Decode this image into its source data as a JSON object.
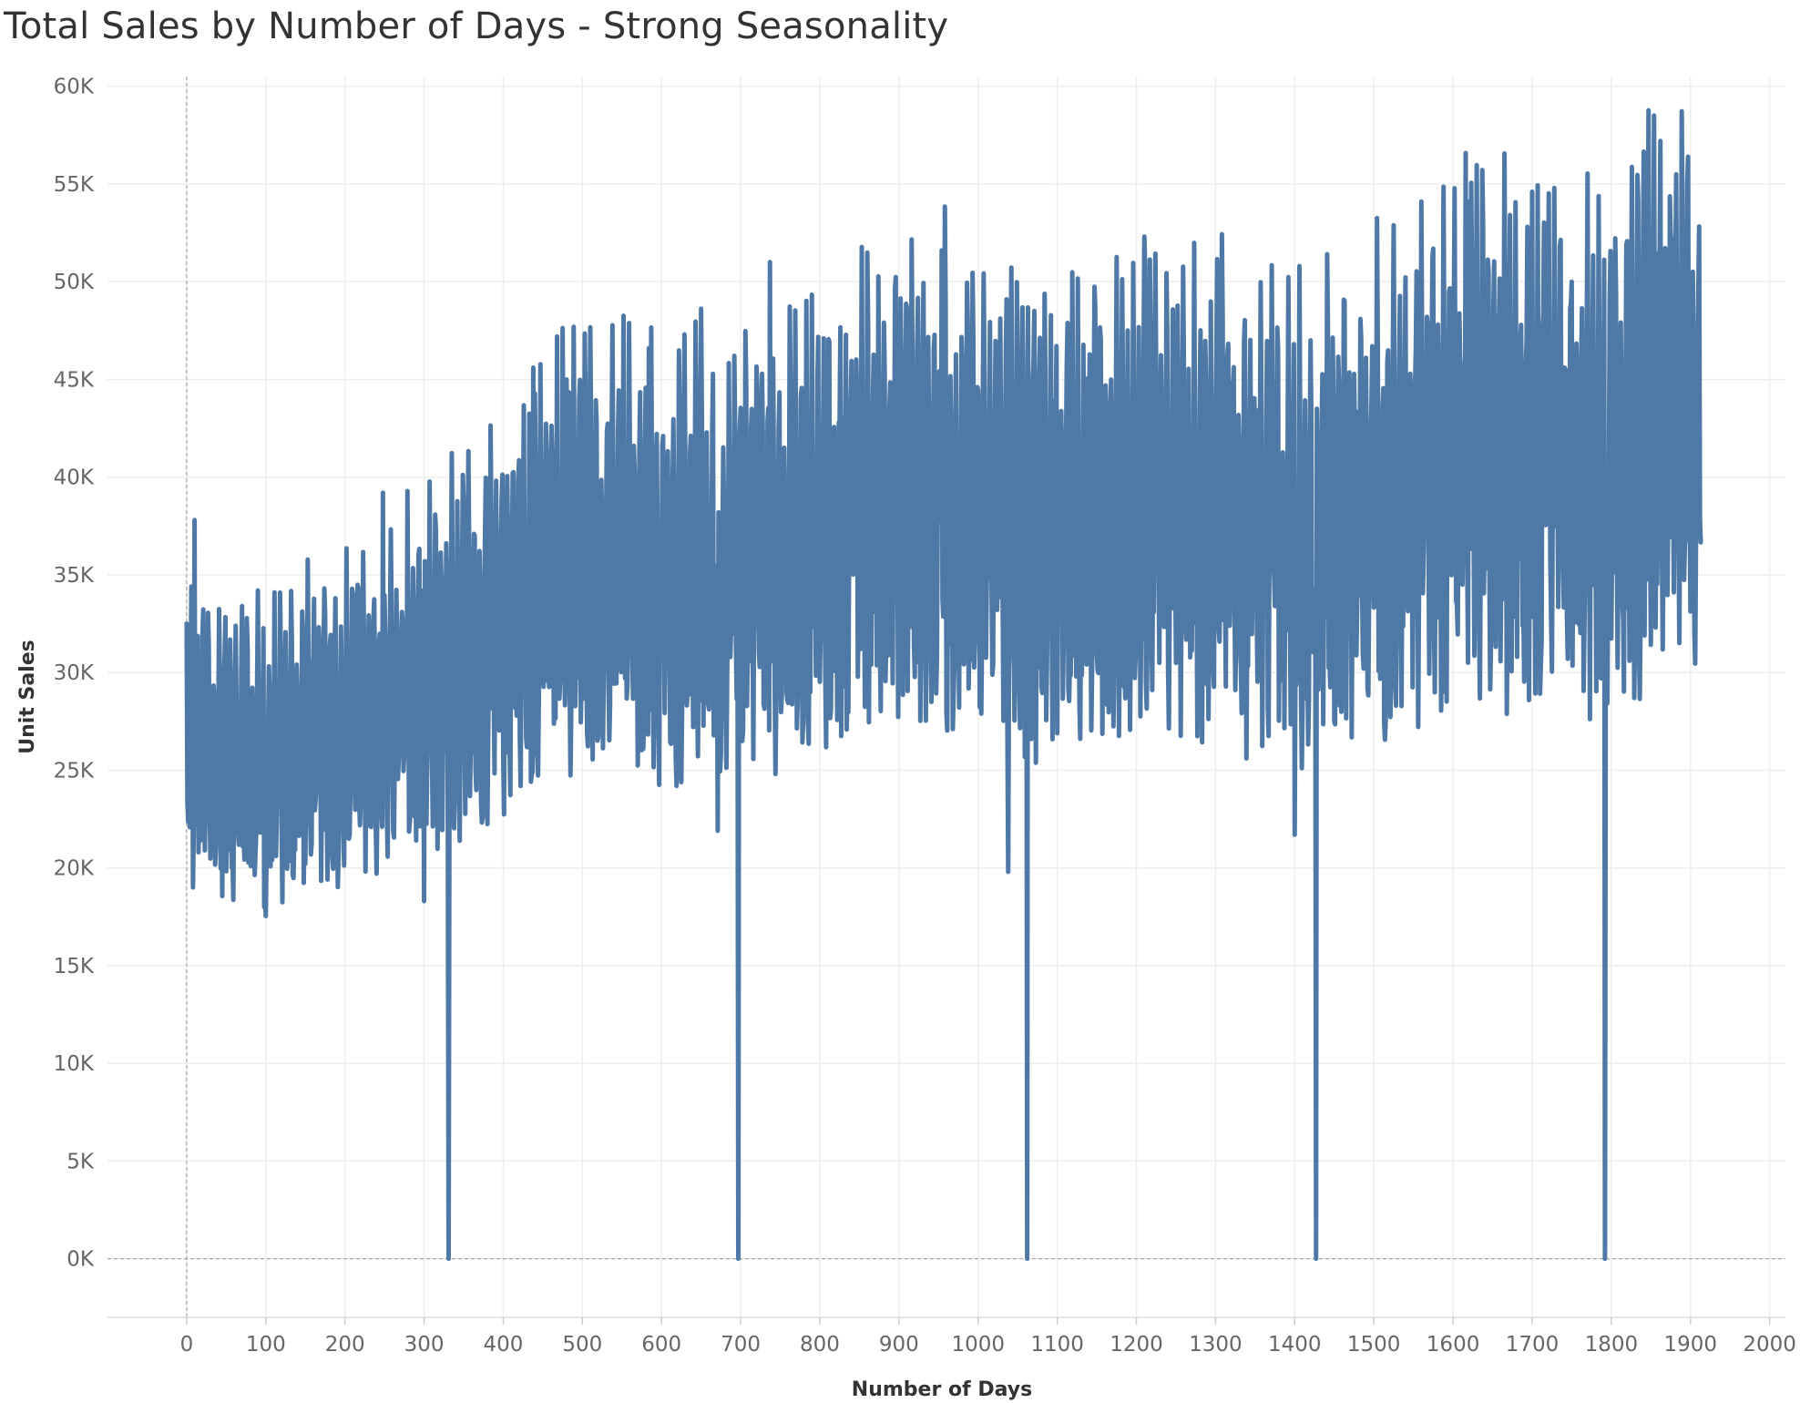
{
  "chart_data": {
    "type": "line",
    "title": "Total Sales by Number of Days - Strong Seasonality",
    "xlabel": "Number of Days",
    "ylabel": "Unit Sales",
    "xlim": [
      -100,
      2020
    ],
    "ylim": [
      -3000,
      60500
    ],
    "x_ticks": [
      0,
      100,
      200,
      300,
      400,
      500,
      600,
      700,
      800,
      900,
      1000,
      1100,
      1200,
      1300,
      1400,
      1500,
      1600,
      1700,
      1800,
      1900,
      2000
    ],
    "x_tick_labels": [
      "0",
      "100",
      "200",
      "300",
      "400",
      "500",
      "600",
      "700",
      "800",
      "900",
      "1000",
      "1100",
      "1200",
      "1300",
      "1400",
      "1500",
      "1600",
      "1700",
      "1800",
      "1900",
      "2000"
    ],
    "y_ticks": [
      0,
      5000,
      10000,
      15000,
      20000,
      25000,
      30000,
      35000,
      40000,
      45000,
      50000,
      55000,
      60000
    ],
    "y_tick_labels": [
      "0K",
      "5K",
      "10K",
      "15K",
      "20K",
      "25K",
      "30K",
      "35K",
      "40K",
      "45K",
      "50K",
      "55K",
      "60K"
    ],
    "grid": true,
    "line_color": "#4e79a7",
    "series": [
      {
        "name": "",
        "x_start": 0,
        "x_end": 1913,
        "trend_anchors": [
          [
            0,
            26000
          ],
          [
            100,
            24500
          ],
          [
            200,
            27000
          ],
          [
            300,
            28500
          ],
          [
            400,
            32000
          ],
          [
            500,
            35000
          ],
          [
            600,
            34500
          ],
          [
            700,
            35000
          ],
          [
            800,
            36000
          ],
          [
            900,
            38500
          ],
          [
            1000,
            37500
          ],
          [
            1100,
            37000
          ],
          [
            1200,
            37500
          ],
          [
            1300,
            37000
          ],
          [
            1400,
            36000
          ],
          [
            1500,
            38000
          ],
          [
            1600,
            40000
          ],
          [
            1700,
            40000
          ],
          [
            1800,
            40000
          ],
          [
            1913,
            44000
          ]
        ],
        "zero_days": [
          331,
          697,
          1062,
          1427,
          1792
        ],
        "notable_points": [
          [
            0,
            32500
          ],
          [
            8,
            19000
          ],
          [
            10,
            37800
          ],
          [
            70,
            33400
          ],
          [
            98,
            18000
          ],
          [
            248,
            39200
          ],
          [
            300,
            18300
          ],
          [
            438,
            45600
          ],
          [
            480,
            45000
          ],
          [
            584,
            46600
          ],
          [
            671,
            21900
          ],
          [
            737,
            51000
          ],
          [
            954,
            51600
          ],
          [
            1038,
            19800
          ],
          [
            1400,
            21700
          ],
          [
            1620,
            54100
          ],
          [
            1700,
            54600
          ],
          [
            1862,
            57200
          ],
          [
            1897,
            56400
          ],
          [
            1910,
            49700
          ]
        ]
      }
    ]
  }
}
